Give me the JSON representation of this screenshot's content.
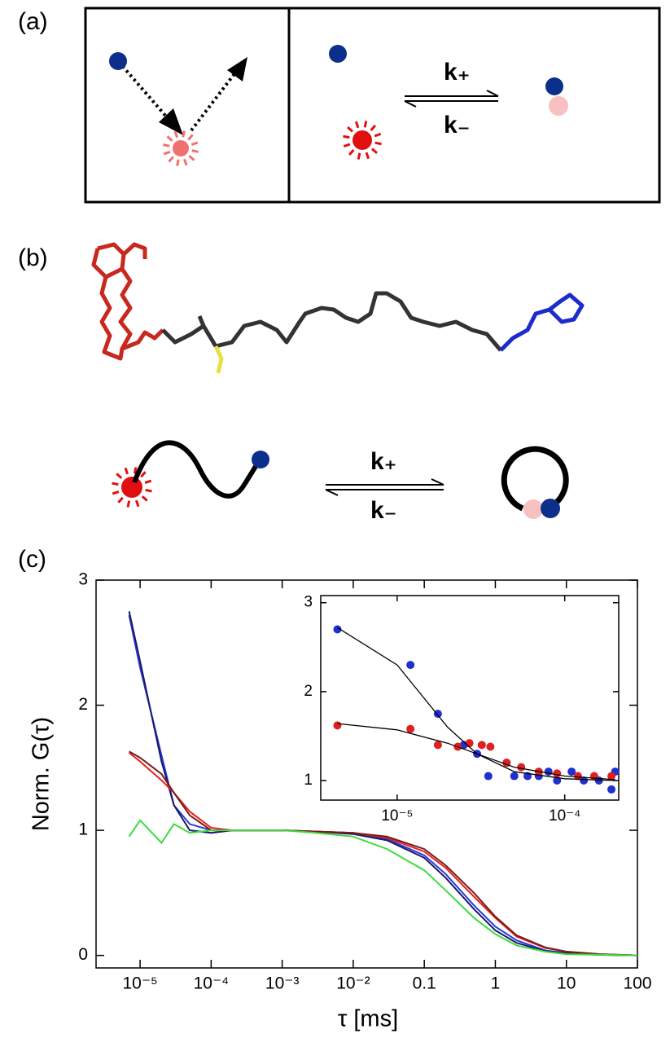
{
  "panel_a": {
    "label": "(a)",
    "rate_forward": "k₊",
    "rate_backward": "k₋"
  },
  "panel_b": {
    "label": "(b)",
    "rate_forward": "k₊",
    "rate_backward": "k₋"
  },
  "panel_c": {
    "label": "(c)"
  },
  "chart_data": [
    {
      "type": "line",
      "log_x": true,
      "xlabel": "τ [ms]",
      "ylabel": "Norm. G(τ)",
      "xlim": [
        2.4e-06,
        100
      ],
      "ylim": [
        -0.1,
        3
      ],
      "xticks": [
        {
          "value": 1e-05,
          "label": "10⁻⁵"
        },
        {
          "value": 0.0001,
          "label": "10⁻⁴"
        },
        {
          "value": 0.001,
          "label": "10⁻³"
        },
        {
          "value": 0.01,
          "label": "10⁻²"
        },
        0.1,
        1,
        10,
        100
      ],
      "yticks": [
        0,
        1,
        2,
        3
      ],
      "x": [
        7e-06,
        1e-05,
        2e-05,
        3e-05,
        5e-05,
        0.0001,
        0.0002,
        0.0005,
        0.001,
        0.003,
        0.01,
        0.03,
        0.1,
        0.2,
        0.5,
        1,
        2,
        5,
        10,
        30,
        100
      ],
      "series": [
        {
          "color": "#2a3bd6",
          "values": [
            2.72,
            2.3,
            1.6,
            1.2,
            1.05,
            1.0,
            1.0,
            1.0,
            1.0,
            0.99,
            0.98,
            0.93,
            0.8,
            0.65,
            0.4,
            0.23,
            0.12,
            0.04,
            0.02,
            0.005,
            0
          ]
        },
        {
          "color": "#17186b",
          "values": [
            2.75,
            2.35,
            1.55,
            1.2,
            1.0,
            0.98,
            1.0,
            1.0,
            1.0,
            0.99,
            0.97,
            0.92,
            0.78,
            0.62,
            0.37,
            0.2,
            0.1,
            0.035,
            0.015,
            0.004,
            0
          ]
        },
        {
          "color": "#e52020",
          "values": [
            1.62,
            1.55,
            1.4,
            1.3,
            1.15,
            1.02,
            1.0,
            1.0,
            1.0,
            0.99,
            0.98,
            0.94,
            0.83,
            0.7,
            0.47,
            0.3,
            0.15,
            0.06,
            0.03,
            0.01,
            0
          ]
        },
        {
          "color": "#7a1a1a",
          "values": [
            1.63,
            1.58,
            1.45,
            1.3,
            1.12,
            1.0,
            1.0,
            1.0,
            1.0,
            0.99,
            0.98,
            0.95,
            0.85,
            0.72,
            0.5,
            0.31,
            0.16,
            0.065,
            0.03,
            0.01,
            0
          ]
        },
        {
          "color": "#3cdc3c",
          "values": [
            0.95,
            1.08,
            0.9,
            1.05,
            0.98,
            1.0,
            1.0,
            1.0,
            1.0,
            0.98,
            0.95,
            0.85,
            0.68,
            0.52,
            0.3,
            0.17,
            0.08,
            0.03,
            0.01,
            0.005,
            0
          ]
        }
      ]
    },
    {
      "type": "scatter",
      "log_x": true,
      "xlim": [
        3.5e-06,
        0.00021
      ],
      "ylim": [
        0.78,
        3.08
      ],
      "xticks": [
        {
          "value": 1e-05,
          "label": "10⁻⁵"
        },
        {
          "value": 0.0001,
          "label": "10⁻⁴"
        }
      ],
      "yticks": [
        1,
        2,
        3
      ],
      "series": [
        {
          "mode": "markers",
          "color": "#1f2fd0",
          "x": [
            4.4e-06,
            1.2e-05,
            1.75e-05,
            2.5e-05,
            3e-05,
            3.5e-05,
            4.5e-05,
            5e-05,
            6e-05,
            7e-05,
            8e-05,
            9e-05,
            0.00011,
            0.00013,
            0.00016,
            0.00019,
            0.0002
          ],
          "values": [
            2.7,
            2.3,
            1.75,
            1.4,
            1.3,
            1.05,
            1.2,
            1.05,
            1.05,
            1.05,
            1.1,
            1.0,
            1.1,
            1.0,
            1.0,
            0.9,
            1.1
          ]
        },
        {
          "mode": "markers",
          "color": "#e02020",
          "x": [
            4.4e-06,
            1.2e-05,
            1.75e-05,
            2.3e-05,
            2.7e-05,
            3.2e-05,
            3.6e-05,
            4.5e-05,
            5.5e-05,
            7e-05,
            9e-05,
            0.00012,
            0.00015,
            0.00019
          ],
          "values": [
            1.62,
            1.58,
            1.4,
            1.38,
            1.42,
            1.4,
            1.38,
            1.2,
            1.15,
            1.1,
            1.08,
            1.05,
            1.05,
            1.05
          ]
        },
        {
          "mode": "line",
          "color": "#000000",
          "x": [
            4.4e-06,
            1e-05,
            2e-05,
            3e-05,
            5e-05,
            0.0001,
            0.0002
          ],
          "values": [
            2.72,
            2.3,
            1.6,
            1.3,
            1.1,
            1.02,
            1.0
          ]
        },
        {
          "mode": "line",
          "color": "#000000",
          "x": [
            4.4e-06,
            1e-05,
            2e-05,
            3e-05,
            5e-05,
            0.0001,
            0.0002
          ],
          "values": [
            1.64,
            1.57,
            1.42,
            1.3,
            1.15,
            1.05,
            1.01
          ]
        }
      ]
    }
  ]
}
